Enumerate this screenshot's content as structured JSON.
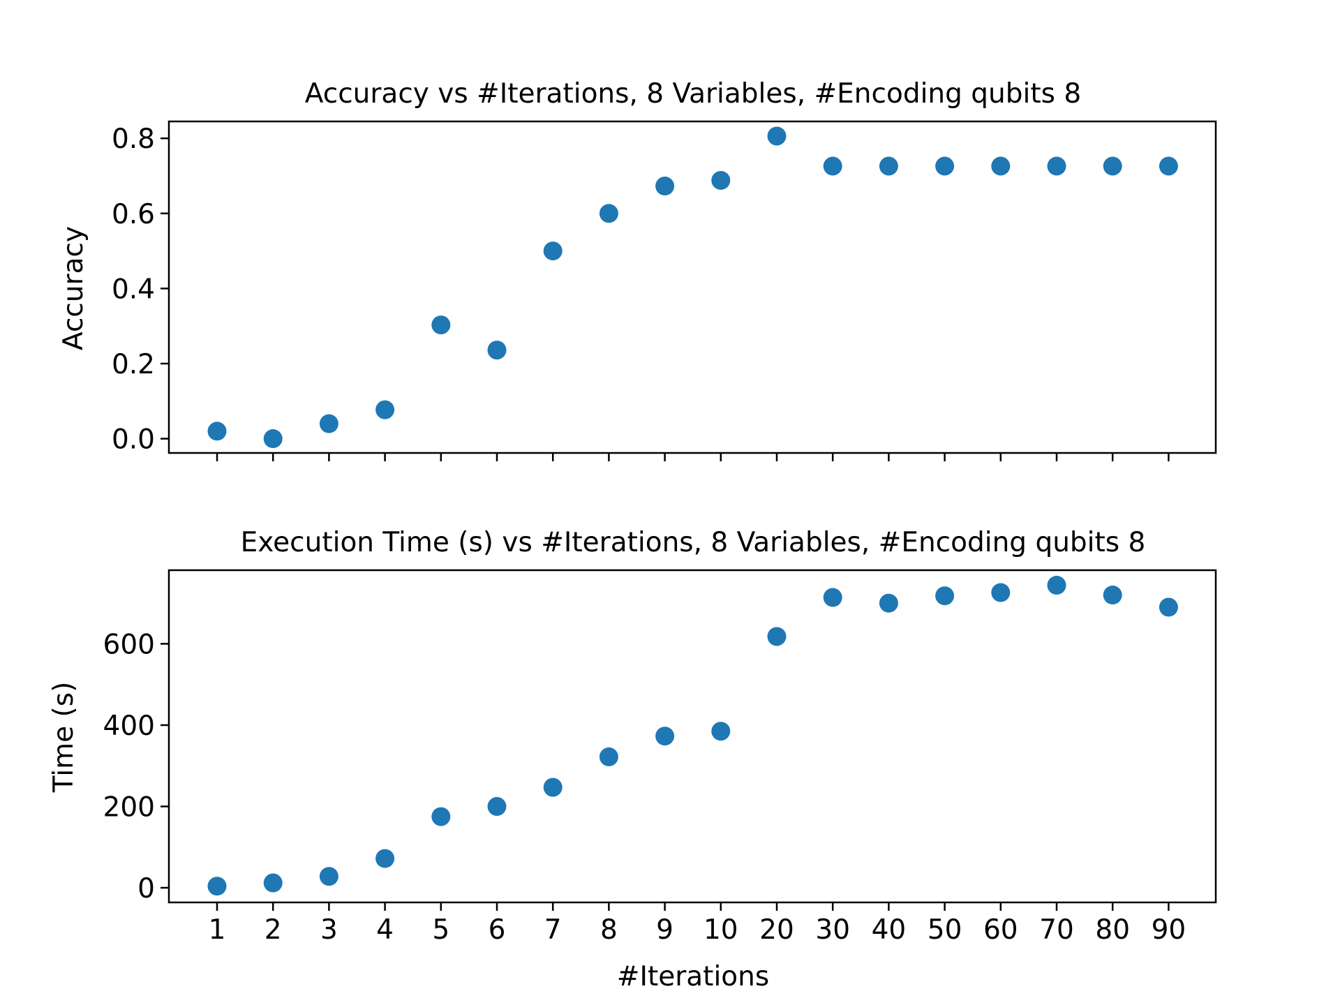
{
  "chart_data": [
    {
      "type": "scatter",
      "title": "Accuracy vs #Iterations, 8 Variables, #Encoding qubits 8",
      "xlabel": "",
      "ylabel": "Accuracy",
      "categories": [
        "1",
        "2",
        "3",
        "4",
        "5",
        "6",
        "7",
        "8",
        "9",
        "10",
        "20",
        "30",
        "40",
        "50",
        "60",
        "70",
        "80",
        "90"
      ],
      "values": [
        0.02,
        0.0,
        0.04,
        0.077,
        0.303,
        0.236,
        0.5,
        0.6,
        0.673,
        0.688,
        0.806,
        0.726,
        0.726,
        0.726,
        0.726,
        0.726,
        0.726,
        0.726
      ],
      "ylim": [
        -0.038,
        0.845
      ],
      "yticks": [
        0.0,
        0.2,
        0.4,
        0.6,
        0.8
      ],
      "ytick_labels": [
        "0.0",
        "0.2",
        "0.4",
        "0.6",
        "0.8"
      ],
      "show_x_tick_labels": false,
      "grid": false,
      "marker_color": "#1f77b4"
    },
    {
      "type": "scatter",
      "title": "Execution Time (s) vs #Iterations, 8 Variables, #Encoding qubits 8",
      "xlabel": "#Iterations",
      "ylabel": "Time (s)",
      "categories": [
        "1",
        "2",
        "3",
        "4",
        "5",
        "6",
        "7",
        "8",
        "9",
        "10",
        "20",
        "30",
        "40",
        "50",
        "60",
        "70",
        "80",
        "90"
      ],
      "values": [
        4,
        12,
        28,
        72,
        175,
        200,
        247,
        322,
        373,
        385,
        618,
        714,
        700,
        718,
        726,
        744,
        720,
        690
      ],
      "ylim": [
        -36,
        781
      ],
      "yticks": [
        0,
        200,
        400,
        600
      ],
      "ytick_labels": [
        "0",
        "200",
        "400",
        "600"
      ],
      "show_x_tick_labels": true,
      "grid": false,
      "marker_color": "#1f77b4"
    }
  ]
}
